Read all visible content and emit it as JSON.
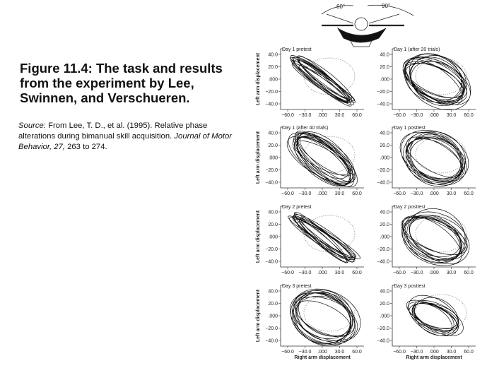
{
  "caption": {
    "title": "Figure 11.4: The task and results from the experiment by Lee, Swinnen, and Verschueren.",
    "source_label": "Source:",
    "source_text": " From Lee, T. D., et al. (1995). Relative phase alterations during bimanual skill acquisition. ",
    "journal": "Journal of Motor Behavior, 27,",
    "pages": " 263 to 274."
  },
  "task_illustration": {
    "left_angle_label": "60°",
    "right_angle_label": "90°"
  },
  "axes": {
    "ylabel": "Left arm displacement",
    "xlabel": "Right arm displacement",
    "y_ticks": [
      "40.0",
      "20.0",
      ".000",
      "−20.0",
      "−40.0"
    ],
    "x_ticks": [
      "−60.0",
      "−30.0",
      ".000",
      "30.0",
      "60.0"
    ],
    "x_range": [
      -60,
      60
    ],
    "y_range": [
      -40,
      40
    ]
  },
  "panels": [
    {
      "label": "Day 1 pretest",
      "pattern": "diagonal"
    },
    {
      "label": "Day 1 (after 20 trials)",
      "pattern": "mixed"
    },
    {
      "label": "Day 1 (after 40 trials)",
      "pattern": "wide-diagonal"
    },
    {
      "label": "Day 1 posttest",
      "pattern": "ellipse"
    },
    {
      "label": "Day 2 pretest",
      "pattern": "diagonal"
    },
    {
      "label": "Day 2 posttest",
      "pattern": "ellipse"
    },
    {
      "label": "Day 3 pretest",
      "pattern": "ellipse"
    },
    {
      "label": "Day 3 posttest",
      "pattern": "ellipse-small"
    }
  ]
}
